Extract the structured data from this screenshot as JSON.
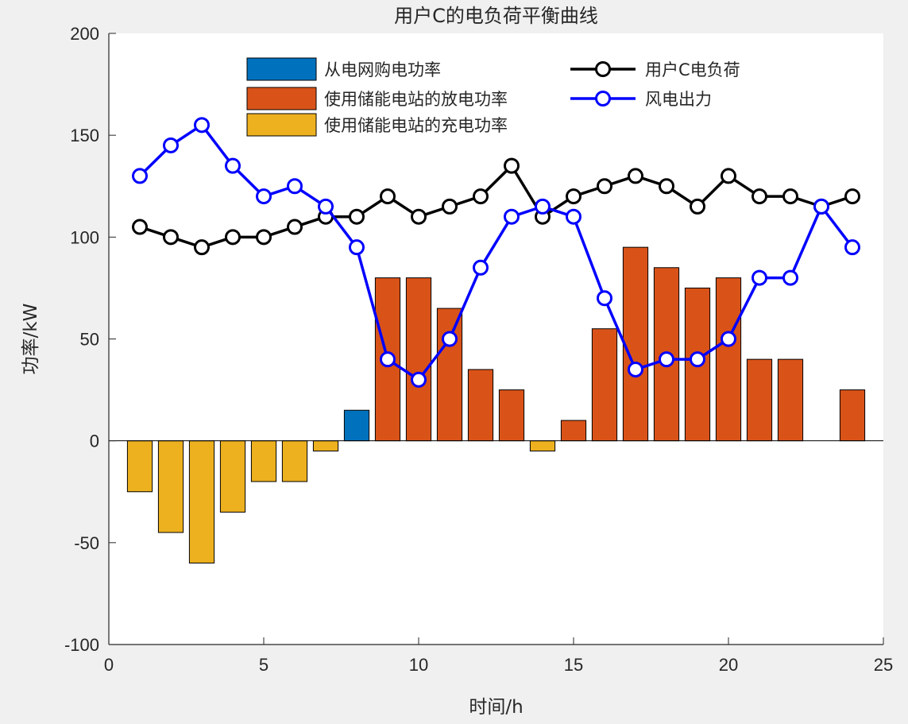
{
  "chart_data": {
    "type": "bar",
    "title": "用户C的电负荷平衡曲线",
    "xlabel": "时间/h",
    "ylabel": "功率/kW",
    "xlim": [
      0,
      25
    ],
    "ylim": [
      -100,
      200
    ],
    "xticks": [
      0,
      5,
      10,
      15,
      20,
      25
    ],
    "yticks": [
      -100,
      -50,
      0,
      50,
      100,
      150,
      200
    ],
    "x": [
      1,
      2,
      3,
      4,
      5,
      6,
      7,
      8,
      9,
      10,
      11,
      12,
      13,
      14,
      15,
      16,
      17,
      18,
      19,
      20,
      21,
      22,
      23,
      24
    ],
    "grid": false,
    "legend_position": "top",
    "bar_series": [
      {
        "name": "从电网购电功率",
        "color": "#0072BD",
        "values": [
          0,
          0,
          0,
          0,
          0,
          0,
          0,
          15,
          0,
          0,
          0,
          0,
          0,
          0,
          0,
          0,
          0,
          0,
          0,
          0,
          0,
          0,
          0,
          0
        ]
      },
      {
        "name": "使用储能电站的放电功率",
        "color": "#D95319",
        "values": [
          0,
          0,
          0,
          0,
          0,
          0,
          0,
          0,
          80,
          80,
          65,
          35,
          25,
          0,
          10,
          55,
          95,
          85,
          75,
          80,
          40,
          40,
          0,
          25
        ]
      },
      {
        "name": "使用储能电站的充电功率",
        "color": "#EDB120",
        "values": [
          -25,
          -45,
          -60,
          -35,
          -20,
          -20,
          -5,
          0,
          0,
          0,
          0,
          0,
          0,
          -5,
          0,
          0,
          0,
          0,
          0,
          0,
          0,
          0,
          0,
          0
        ]
      }
    ],
    "line_series": [
      {
        "name": "用户C电负荷",
        "color": "#000000",
        "marker": "circle",
        "values": [
          105,
          100,
          95,
          100,
          100,
          105,
          110,
          110,
          120,
          110,
          115,
          120,
          135,
          110,
          120,
          125,
          130,
          125,
          115,
          130,
          120,
          120,
          115,
          120
        ]
      },
      {
        "name": "风电出力",
        "color": "#0000FF",
        "marker": "circle",
        "values": [
          130,
          145,
          155,
          135,
          120,
          125,
          115,
          95,
          40,
          30,
          50,
          85,
          110,
          115,
          110,
          70,
          35,
          40,
          40,
          50,
          80,
          80,
          115,
          95
        ]
      }
    ]
  }
}
